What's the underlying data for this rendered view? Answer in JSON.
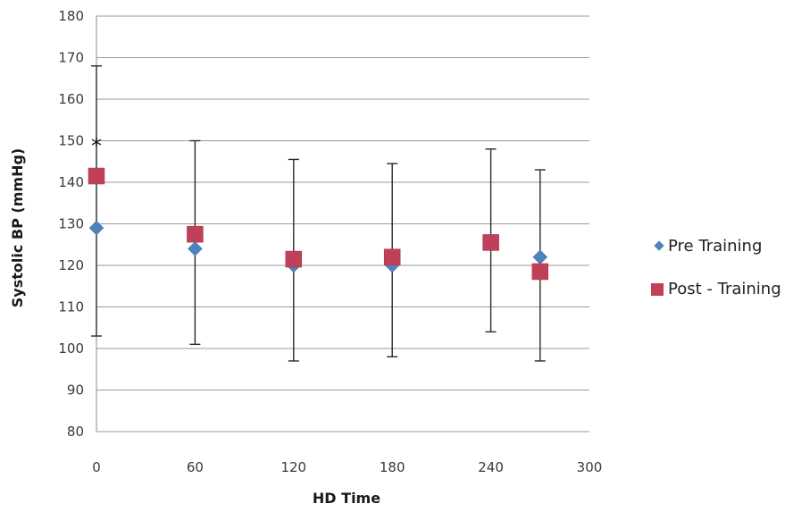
{
  "chart_data": {
    "type": "scatter",
    "xlabel": "HD Time",
    "ylabel": "Systolic BP (mmHg)",
    "xlim": [
      0,
      300
    ],
    "ylim": [
      80,
      180
    ],
    "x_ticks": [
      "0",
      "60",
      "120",
      "180",
      "240",
      "300"
    ],
    "y_ticks": [
      "80",
      "90",
      "100",
      "110",
      "120",
      "130",
      "140",
      "150",
      "160",
      "170",
      "180"
    ],
    "grid": "horizontal",
    "legend_position": "right",
    "series": [
      {
        "name": "Pre Training",
        "marker": "diamond",
        "color": "#4f81bd",
        "x": [
          0,
          60,
          120,
          180,
          240,
          270
        ],
        "y": [
          129,
          124,
          120,
          120,
          126,
          122
        ]
      },
      {
        "name": "Post - Training",
        "marker": "square",
        "color": "#c0405a",
        "x": [
          0,
          60,
          120,
          180,
          240,
          270
        ],
        "y": [
          141.5,
          127.5,
          121.5,
          122,
          125.5,
          118.5
        ]
      }
    ],
    "error_bars": [
      {
        "x": 0,
        "low": 103,
        "high": 168
      },
      {
        "x": 60,
        "low": 101,
        "high": 150
      },
      {
        "x": 120,
        "low": 97,
        "high": 145.5
      },
      {
        "x": 180,
        "low": 98,
        "high": 144.5
      },
      {
        "x": 240,
        "low": 104,
        "high": 148
      },
      {
        "x": 270,
        "low": 97,
        "high": 143
      }
    ],
    "annotations": [
      {
        "text": "*",
        "x": 0,
        "y": 150
      }
    ]
  }
}
